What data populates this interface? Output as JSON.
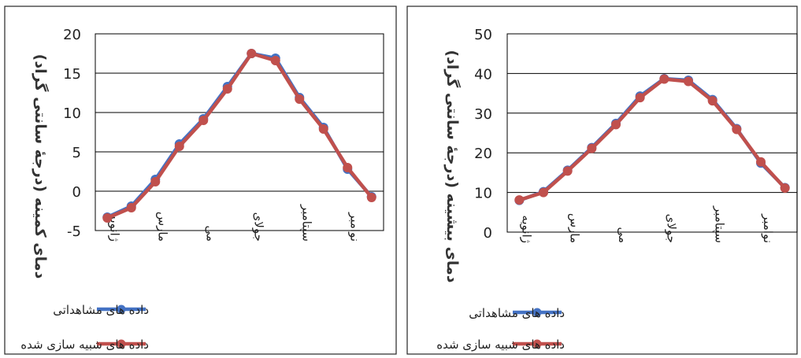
{
  "chart_data": [
    {
      "type": "line",
      "title": "",
      "xlabel": "",
      "ylabel": "دمای کمینه (درجهٔ سانتی گراد)",
      "ylim": [
        -5,
        20
      ],
      "yticks": [
        -5,
        0,
        5,
        10,
        15,
        20
      ],
      "grid": true,
      "legend": "bottom",
      "month_tick_labels": [
        "ژانویه",
        "مارس",
        "می",
        "جولای",
        "سپتامبر",
        "نوامبر"
      ],
      "series": [
        {
          "name": "داده های مشاهداتی",
          "color": "#4472c4",
          "values": [
            -3.3,
            -1.9,
            1.5,
            6.0,
            9.2,
            13.3,
            17.5,
            16.9,
            11.9,
            8.1,
            2.8,
            -0.7
          ]
        },
        {
          "name": "داده های  شبیه سازی شده",
          "color": "#c0504d",
          "values": [
            -3.4,
            -2.1,
            1.2,
            5.7,
            9.0,
            13.0,
            17.5,
            16.6,
            11.7,
            7.9,
            3.0,
            -0.8
          ]
        }
      ]
    },
    {
      "type": "line",
      "title": "",
      "xlabel": "",
      "ylabel": "دمای بیشینه (درجهٔ سانتی گراد)",
      "ylim": [
        0,
        50
      ],
      "yticks": [
        0,
        10,
        20,
        30,
        40,
        50
      ],
      "grid": true,
      "legend": "bottom",
      "month_tick_labels": [
        "ژانویه",
        "مارس",
        "می",
        "جولای",
        "سپتامبر",
        "نوامبر"
      ],
      "series": [
        {
          "name": "داده های مشاهداتی",
          "color": "#4472c4",
          "values": [
            8.0,
            10.2,
            15.6,
            21.3,
            27.4,
            34.3,
            38.7,
            38.3,
            33.4,
            26.1,
            17.4,
            11.2
          ]
        },
        {
          "name": "داده های شبیه سازی شده",
          "color": "#c0504d",
          "values": [
            8.1,
            10.0,
            15.4,
            21.1,
            27.1,
            33.9,
            38.6,
            38.0,
            33.1,
            25.9,
            17.7,
            11.1
          ]
        }
      ]
    }
  ]
}
